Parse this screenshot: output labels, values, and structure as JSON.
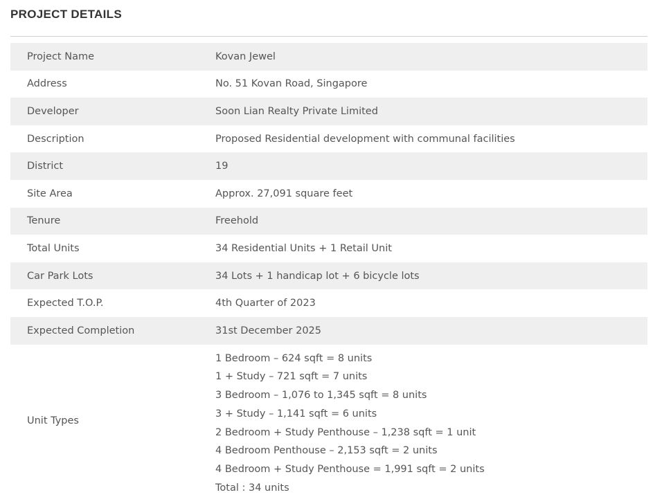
{
  "title": "PROJECT DETAILS",
  "rows": [
    {
      "label": "Project Name",
      "value": "Kovan Jewel"
    },
    {
      "label": "Address",
      "value": "No. 51 Kovan Road, Singapore"
    },
    {
      "label": "Developer",
      "value": "Soon Lian Realty Private Limited"
    },
    {
      "label": "Description",
      "value": "Proposed Residential development with communal facilities"
    },
    {
      "label": "District",
      "value": "19"
    },
    {
      "label": "Site Area",
      "value": "Approx. 27,091 square feet"
    },
    {
      "label": "Tenure",
      "value": "Freehold"
    },
    {
      "label": "Total Units",
      "value": "34 Residential Units + 1 Retail Unit"
    },
    {
      "label": "Car Park Lots",
      "value": "34 Lots + 1 handicap lot + 6 bicycle lots"
    },
    {
      "label": "Expected T.O.P.",
      "value": "4th Quarter of 2023"
    },
    {
      "label": "Expected Completion",
      "value": "31st December 2025"
    }
  ],
  "unit_types": {
    "label": "Unit Types",
    "lines": [
      "1 Bedroom – 624 sqft = 8 units",
      "1 + Study – 721 sqft = 7 units",
      "3 Bedroom – 1,076 to 1,345 sqft = 8 units",
      "3 + Study – 1,141 sqft = 6 units",
      "2 Bedroom + Study Penthouse – 1,238 sqft = 1 unit",
      "4 Bedroom Penthouse – 2,153 sqft = 2 units",
      "4 Bedroom + Study Penthouse = 1,991 sqft = 2 units",
      "Total : 34 units"
    ]
  }
}
